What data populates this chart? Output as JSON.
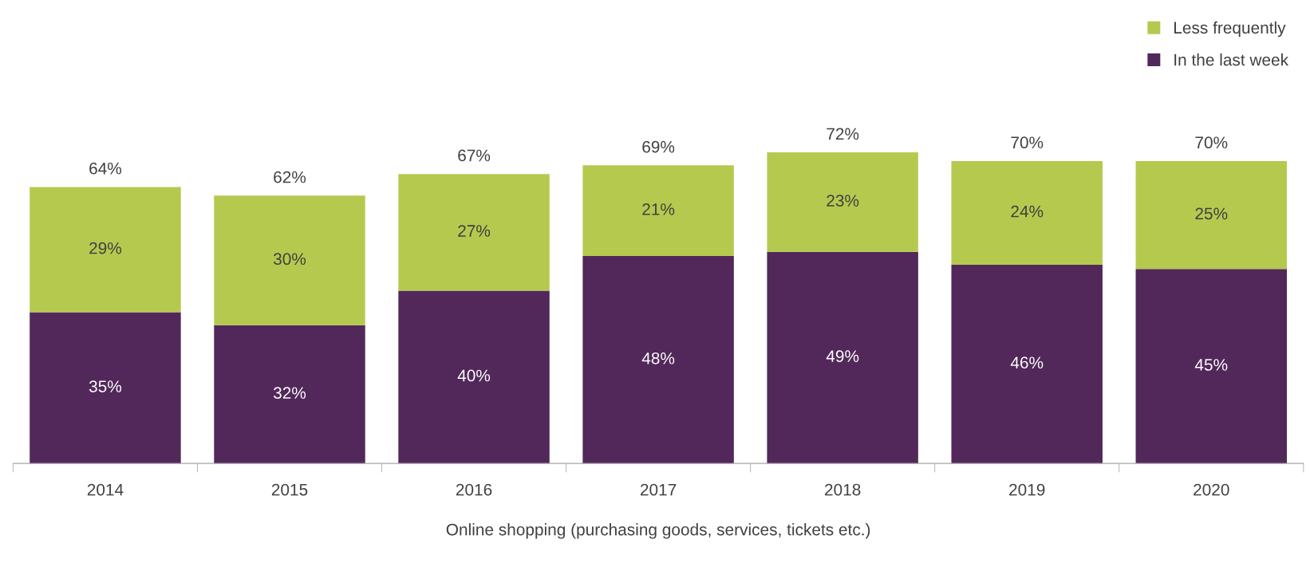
{
  "chart_data": {
    "type": "bar",
    "stacked": true,
    "xlabel": "Online shopping (purchasing goods, services, tickets etc.)",
    "categories": [
      "2014",
      "2015",
      "2016",
      "2017",
      "2018",
      "2019",
      "2020"
    ],
    "series": [
      {
        "name": "In the last week",
        "color": "#52285a",
        "values": [
          35,
          32,
          40,
          48,
          49,
          46,
          45
        ],
        "value_labels": [
          "35%",
          "32%",
          "40%",
          "48%",
          "49%",
          "46%",
          "45%"
        ]
      },
      {
        "name": "Less frequently",
        "color": "#b6c94f",
        "values": [
          29,
          30,
          27,
          21,
          23,
          24,
          25
        ],
        "value_labels": [
          "29%",
          "30%",
          "27%",
          "21%",
          "23%",
          "24%",
          "25%"
        ]
      }
    ],
    "totals": [
      "64%",
      "62%",
      "67%",
      "69%",
      "72%",
      "70%",
      "70%"
    ],
    "legend": "top right",
    "grid": false
  }
}
